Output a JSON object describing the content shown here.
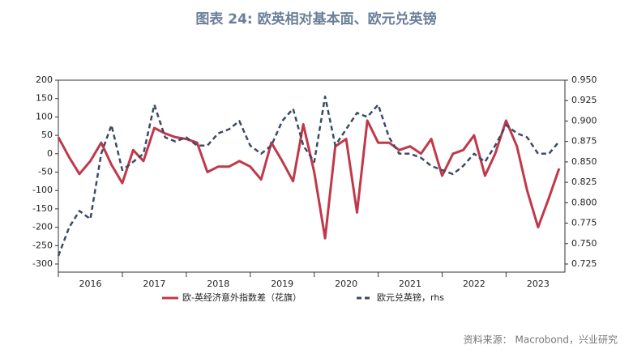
{
  "chart_data": {
    "type": "line",
    "title": "图表 24: 欧英相对基本面、欧元兑英镑",
    "source": "资料来源：  Macrobond，兴业研究",
    "x": [
      2016.0,
      2016.17,
      2016.33,
      2016.5,
      2016.67,
      2016.83,
      2017.0,
      2017.17,
      2017.33,
      2017.5,
      2017.67,
      2017.83,
      2018.0,
      2018.17,
      2018.33,
      2018.5,
      2018.67,
      2018.83,
      2019.0,
      2019.17,
      2019.33,
      2019.5,
      2019.67,
      2019.83,
      2020.0,
      2020.17,
      2020.33,
      2020.5,
      2020.67,
      2020.83,
      2021.0,
      2021.17,
      2021.33,
      2021.5,
      2021.67,
      2021.83,
      2022.0,
      2022.17,
      2022.33,
      2022.5,
      2022.67,
      2022.83,
      2023.0,
      2023.17,
      2023.33,
      2023.5,
      2023.67,
      2023.83
    ],
    "xlim": [
      2016.0,
      2023.92
    ],
    "xticks": [
      2016,
      2017,
      2018,
      2019,
      2020,
      2021,
      2022,
      2023
    ],
    "ylim": [
      -300,
      200
    ],
    "yticks": [
      -300,
      -250,
      -200,
      -150,
      -100,
      -50,
      0,
      50,
      100,
      150,
      200
    ],
    "y2lim": [
      0.725,
      0.95
    ],
    "y2ticks": [
      {
        "value": 0.725,
        "label": "0.725"
      },
      {
        "value": 0.75,
        "label": "0.750"
      },
      {
        "value": 0.775,
        "label": "0.775"
      },
      {
        "value": 0.8,
        "label": "0.800"
      },
      {
        "value": 0.825,
        "label": "0.825"
      },
      {
        "value": 0.85,
        "label": "0.850"
      },
      {
        "value": 0.875,
        "label": "0.875"
      },
      {
        "value": 0.9,
        "label": "0.900"
      },
      {
        "value": 0.925,
        "label": "0.925"
      },
      {
        "value": 0.95,
        "label": "0.950"
      }
    ],
    "series": [
      {
        "name": "欧-英经济意外指数差（花旗）",
        "color": "#c0394a",
        "dash": false,
        "values": [
          45,
          -10,
          -55,
          -20,
          30,
          -30,
          -80,
          10,
          -20,
          70,
          55,
          45,
          40,
          30,
          -50,
          -35,
          -35,
          -20,
          -35,
          -70,
          30,
          -20,
          -75,
          80,
          -50,
          -230,
          20,
          40,
          -160,
          90,
          30,
          30,
          10,
          20,
          0,
          40,
          -60,
          0,
          10,
          50,
          -60,
          0,
          90,
          20,
          -100,
          -200,
          -120,
          -40
        ]
      },
      {
        "name": "欧元兑英镑，rhs",
        "color": "#3c4a66",
        "dash": true,
        "axis": "y2",
        "values": [
          0.735,
          0.77,
          0.79,
          0.78,
          0.86,
          0.895,
          0.84,
          0.85,
          0.86,
          0.92,
          0.88,
          0.875,
          0.88,
          0.87,
          0.87,
          0.885,
          0.89,
          0.9,
          0.87,
          0.86,
          0.87,
          0.9,
          0.915,
          0.87,
          0.85,
          0.93,
          0.87,
          0.89,
          0.91,
          0.905,
          0.92,
          0.88,
          0.86,
          0.86,
          0.855,
          0.845,
          0.84,
          0.835,
          0.845,
          0.86,
          0.85,
          0.87,
          0.895,
          0.885,
          0.88,
          0.86,
          0.86,
          0.875
        ]
      }
    ]
  }
}
